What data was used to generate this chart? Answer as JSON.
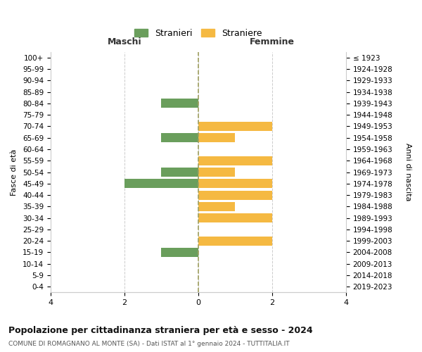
{
  "age_groups": [
    "100+",
    "95-99",
    "90-94",
    "85-89",
    "80-84",
    "75-79",
    "70-74",
    "65-69",
    "60-64",
    "55-59",
    "50-54",
    "45-49",
    "40-44",
    "35-39",
    "30-34",
    "25-29",
    "20-24",
    "15-19",
    "10-14",
    "5-9",
    "0-4"
  ],
  "birth_years": [
    "≤ 1923",
    "1924-1928",
    "1929-1933",
    "1934-1938",
    "1939-1943",
    "1944-1948",
    "1949-1953",
    "1954-1958",
    "1959-1963",
    "1964-1968",
    "1969-1973",
    "1974-1978",
    "1979-1983",
    "1984-1988",
    "1989-1993",
    "1994-1998",
    "1999-2003",
    "2004-2008",
    "2009-2013",
    "2014-2018",
    "2019-2023"
  ],
  "males": [
    0,
    0,
    0,
    0,
    -1,
    0,
    0,
    -1,
    0,
    0,
    -1,
    -2,
    0,
    0,
    0,
    0,
    0,
    -1,
    0,
    0,
    0
  ],
  "females": [
    0,
    0,
    0,
    0,
    0,
    0,
    2,
    1,
    0,
    2,
    1,
    2,
    2,
    1,
    2,
    0,
    2,
    0,
    0,
    0,
    0
  ],
  "male_color": "#6a9e5c",
  "female_color": "#f5b942",
  "title": "Popolazione per cittadinanza straniera per età e sesso - 2024",
  "subtitle": "COMUNE DI ROMAGNANO AL MONTE (SA) - Dati ISTAT al 1° gennaio 2024 - TUTTITALIA.IT",
  "xlabel_left": "Maschi",
  "xlabel_right": "Femmine",
  "ylabel_left": "Fasce di età",
  "ylabel_right": "Anni di nascita",
  "legend_male": "Stranieri",
  "legend_female": "Straniere",
  "xlim": [
    -4,
    4
  ],
  "background_color": "#ffffff",
  "grid_color": "#cccccc",
  "bar_height": 0.8,
  "centerline_color": "#a0a060"
}
